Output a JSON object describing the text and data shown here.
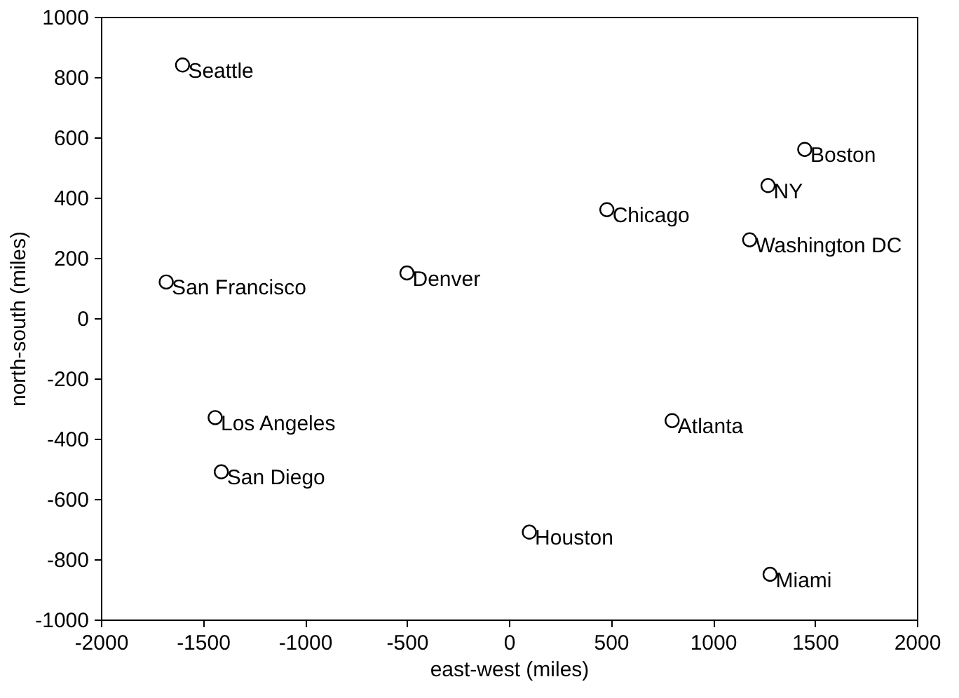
{
  "chart_data": {
    "type": "scatter",
    "xlabel": "east-west (miles)",
    "ylabel": "north-south (miles)",
    "x": [
      -1600,
      -1680,
      -500,
      480,
      1270,
      1450,
      1180,
      -1440,
      -1410,
      800,
      100,
      1280
    ],
    "series": [
      {
        "color": "#000000",
        "values": [
          840,
          120,
          150,
          360,
          440,
          560,
          260,
          -330,
          -510,
          -340,
          -710,
          -850
        ]
      }
    ],
    "value_labels": [
      "Seattle",
      "San Francisco",
      "Denver",
      "Chicago",
      "NY",
      "Boston",
      "Washington DC",
      "Los Angeles",
      "San Diego",
      "Atlanta",
      "Houston",
      "Miami"
    ],
    "xlim": [
      -2000,
      2000
    ],
    "ylim": [
      -1000,
      1000
    ],
    "xticks": [
      -2000,
      -1500,
      -1000,
      -500,
      0,
      500,
      1000,
      1500,
      2000
    ],
    "yticks": [
      -1000,
      -800,
      -600,
      -400,
      -200,
      0,
      200,
      400,
      600,
      800,
      1000
    ],
    "marker": "circle",
    "grid": false
  }
}
